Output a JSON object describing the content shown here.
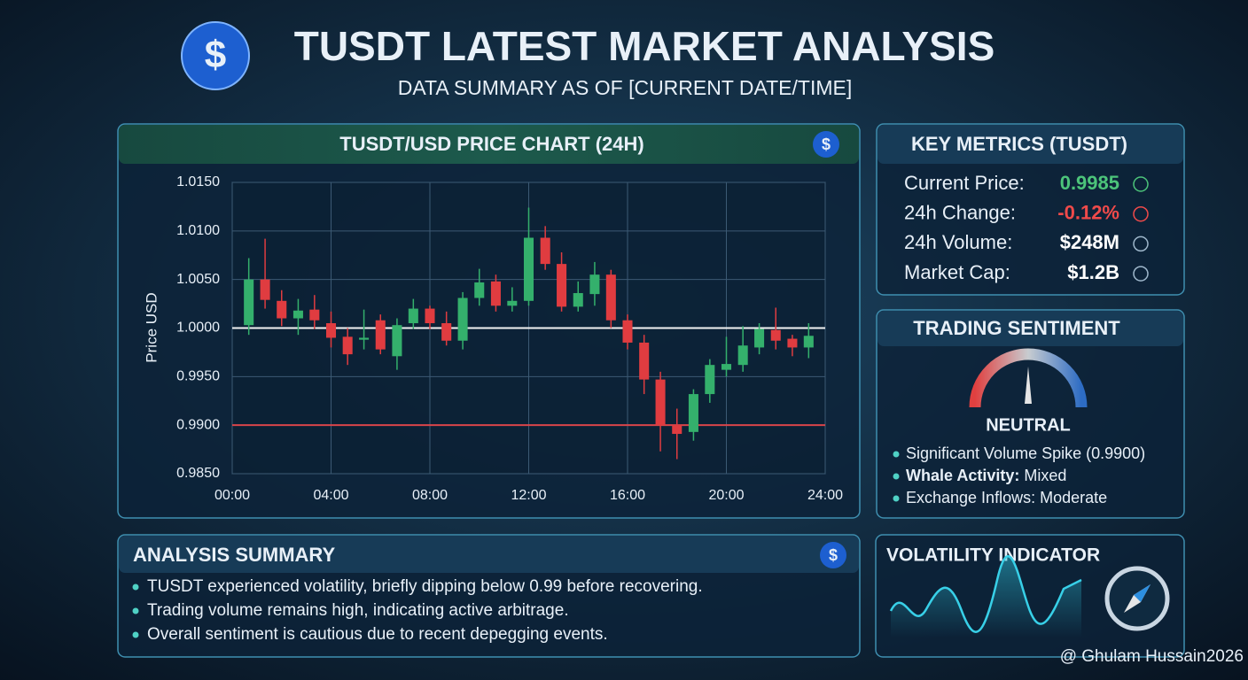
{
  "header": {
    "title": "TUSDT LATEST MARKET ANALYSIS",
    "subtitle": "DATA SUMMARY AS OF [CURRENT DATE/TIME]"
  },
  "chart_data": {
    "type": "candlestick",
    "title": "TUSDT/USD PRICE CHART (24H)",
    "y_label": "Price USD",
    "x": [
      0.67,
      1.33,
      2,
      2.67,
      3.33,
      4,
      4.67,
      5.33,
      6,
      6.67,
      7.33,
      8,
      8.67,
      9.33,
      10,
      10.67,
      11.33,
      12,
      12.67,
      13.33,
      14,
      14.67,
      15.33,
      16,
      16.67,
      17.33,
      18,
      18.67,
      19.33,
      20,
      20.67,
      21.33,
      22,
      22.67,
      23.33
    ],
    "open": [
      1.0003,
      1.005,
      1.0028,
      1.001,
      1.0019,
      1.0005,
      0.9991,
      0.9988,
      1.0008,
      0.9971,
      1.0005,
      1.002,
      1.0005,
      0.9987,
      1.0031,
      1.0048,
      1.0023,
      1.0028,
      1.0093,
      1.0066,
      1.0022,
      1.0035,
      1.0055,
      1.0008,
      0.9985,
      0.9947,
      0.99,
      0.9893,
      0.9932,
      0.9957,
      0.9962,
      0.998,
      0.9998,
      0.9989,
      0.998
    ],
    "high": [
      1.0072,
      1.0092,
      1.0039,
      1.003,
      1.0034,
      1.0017,
      1.0,
      1.0019,
      1.0014,
      1.001,
      1.003,
      1.0023,
      1.0017,
      1.0037,
      1.0061,
      1.0055,
      1.0042,
      1.0124,
      1.0105,
      1.0078,
      1.0048,
      1.0068,
      1.006,
      1.0014,
      0.9993,
      0.9955,
      0.9917,
      0.9937,
      0.9968,
      0.9991,
      1.0002,
      1.0005,
      1.0021,
      0.9993,
      1.0005
    ],
    "low": [
      0.9993,
      1.002,
      1.0002,
      0.9993,
      0.9999,
      0.998,
      0.9962,
      0.9978,
      0.9973,
      0.9957,
      0.9999,
      0.9999,
      0.9982,
      0.9978,
      1.0023,
      1.0017,
      1.0017,
      1.0023,
      1.006,
      1.0017,
      1.0017,
      1.0023,
      1.0,
      0.9978,
      0.9932,
      0.9873,
      0.9865,
      0.9884,
      0.9923,
      0.995,
      0.9955,
      0.9973,
      0.9978,
      0.9971,
      0.9969
    ],
    "close": [
      1.005,
      1.0029,
      1.001,
      1.0018,
      1.0008,
      0.999,
      0.9973,
      0.999,
      0.9978,
      1.0003,
      1.002,
      1.0005,
      0.9987,
      1.0031,
      1.0047,
      1.0023,
      1.0028,
      1.0093,
      1.0066,
      1.0022,
      1.0036,
      1.0055,
      1.0008,
      0.9985,
      0.9947,
      0.99,
      0.9891,
      0.9932,
      0.9962,
      0.9963,
      0.9982,
      0.9999,
      0.9987,
      0.998,
      0.9992
    ],
    "up_color": "#34b06c",
    "down_color": "#e03c40",
    "xlim": [
      0,
      24
    ],
    "xticks": [
      {
        "value": 0,
        "label": "00:00"
      },
      {
        "value": 4,
        "label": "04:00"
      },
      {
        "value": 8,
        "label": "08:00"
      },
      {
        "value": 12,
        "label": "12:00"
      },
      {
        "value": 16,
        "label": "16:00"
      },
      {
        "value": 20,
        "label": "20:00"
      },
      {
        "value": 24,
        "label": "24:00"
      }
    ],
    "ylim": [
      0.985,
      1.015
    ],
    "yticks": [
      {
        "value": 0.985,
        "label": "0.9850"
      },
      {
        "value": 0.99,
        "label": "0.9900"
      },
      {
        "value": 0.995,
        "label": "0.9950"
      },
      {
        "value": 1,
        "label": "1.0000"
      },
      {
        "value": 1.005,
        "label": "1.0050"
      },
      {
        "value": 1.01,
        "label": "1.0100"
      },
      {
        "value": 1.015,
        "label": "1.0150"
      }
    ],
    "grid": true,
    "reference_lines": [
      {
        "value": 1,
        "color": "#f2f2f2"
      },
      {
        "value": 0.99,
        "color": "#d9454a"
      }
    ]
  },
  "key_metrics": {
    "title": "KEY METRICS (TUSDT)",
    "rows": [
      {
        "label": "Current Price:",
        "value": "0.9985",
        "color": "#4cc47a"
      },
      {
        "label": "24h Change:",
        "value": "-0.12%",
        "color": "#f04a4a"
      },
      {
        "label": "24h Volume:",
        "value": "$248M",
        "color": "#ffffff"
      },
      {
        "label": "Market Cap:",
        "value": "$1.2B",
        "color": "#ffffff"
      }
    ]
  },
  "sentiment": {
    "title": "TRADING SENTIMENT",
    "reading": "NEUTRAL",
    "bullets": [
      {
        "text": "Significant Volume Spike (0.9900)"
      },
      {
        "label": "Whale Activity:",
        "text": "Mixed"
      },
      {
        "text": "Exchange Inflows: Moderate"
      }
    ]
  },
  "summary": {
    "title": "ANALYSIS SUMMARY",
    "bullets": [
      "TUSDT experienced volatility, briefly dipping below 0.99 before recovering.",
      "Trading volume remains high, indicating active arbitrage.",
      "Overall sentiment is cautious due to recent depegging events."
    ]
  },
  "volatility": {
    "title": "VOLATILITY INDICATOR"
  },
  "watermark": "@ Ghulam Hussain2026"
}
